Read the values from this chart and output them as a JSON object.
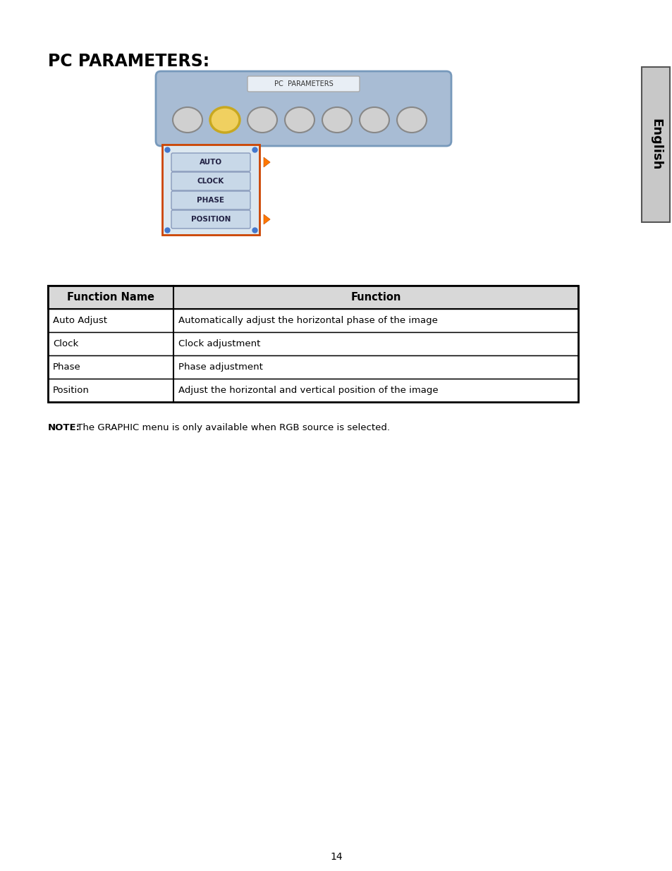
{
  "title": "PC PARAMETERS:",
  "page_number": "14",
  "sidebar_text": "English",
  "sidebar_bg": "#c8c8c8",
  "menu_bg": "#a8bcd4",
  "menu_title": "PC  PARAMETERS",
  "menu_buttons": [
    "AUTO",
    "CLOCK",
    "PHASE",
    "POSITION"
  ],
  "menu_arrows": [
    0,
    3
  ],
  "table_headers": [
    "Function Name",
    "Function"
  ],
  "table_rows": [
    [
      "Auto Adjust",
      "Automatically adjust the horizontal phase of the image"
    ],
    [
      "Clock",
      "Clock adjustment"
    ],
    [
      "Phase",
      "Phase adjustment"
    ],
    [
      "Position",
      "Adjust the horizontal and vertical position of the image"
    ]
  ],
  "note_bold": "NOTE:",
  "note_text": " The GRAPHIC menu is only available when RGB source is selected.",
  "bg_color": "#ffffff",
  "table_header_bg": "#d8d8d8",
  "table_border": "#000000"
}
